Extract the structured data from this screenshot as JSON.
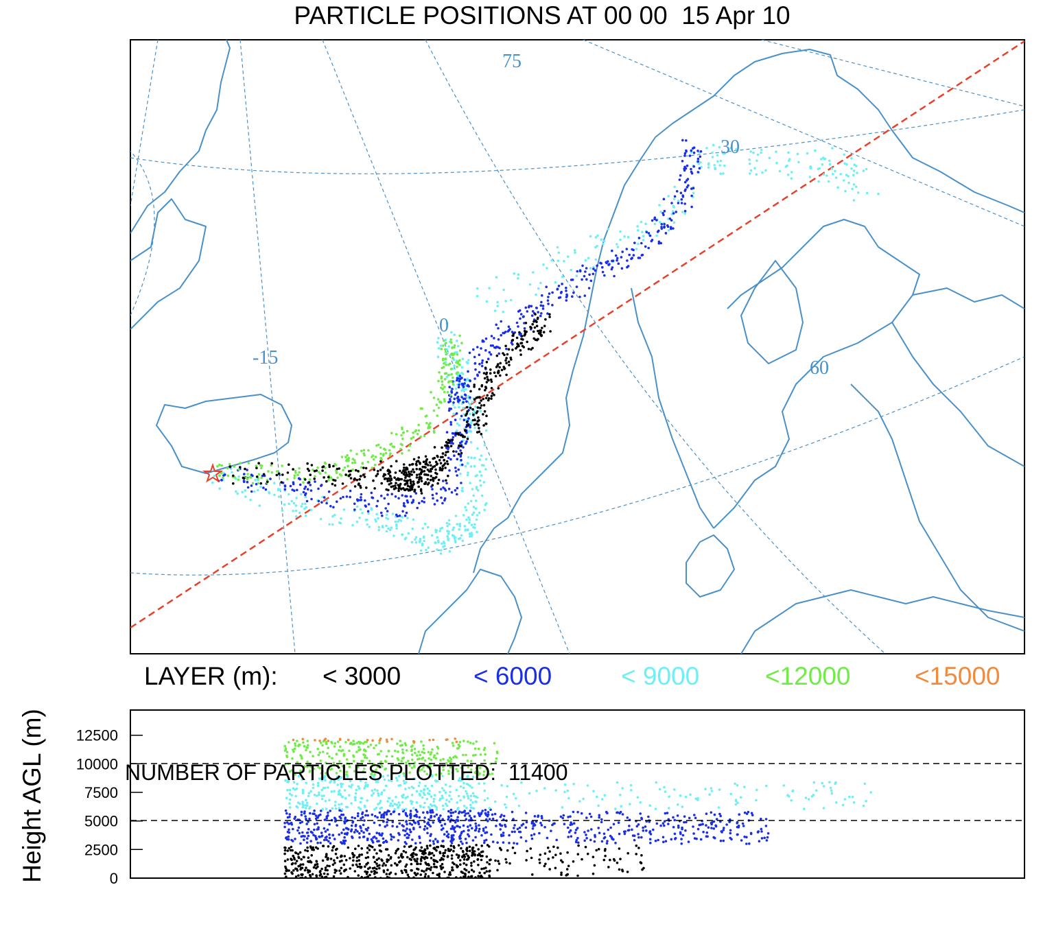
{
  "title": "PARTICLE POSITIONS AT 00 00  15 Apr 10",
  "map": {
    "lon_labels": [
      "-15",
      "0",
      "30"
    ],
    "lat_labels": [
      "75",
      "60"
    ],
    "source_marker": "red-star",
    "colors": {
      "coast": "#4a90c8",
      "grid": "#4a90c8",
      "transect": "#e8402a"
    }
  },
  "legend": {
    "label": "LAYER (m):",
    "items": [
      {
        "label": "< 3000",
        "color": "#000000"
      },
      {
        "label": "< 6000",
        "color": "#1a2ee8"
      },
      {
        "label": "< 9000",
        "color": "#6cf0f4"
      },
      {
        "label": "<12000",
        "color": "#6fec45"
      },
      {
        "label": "<15000",
        "color": "#f08a3c"
      }
    ]
  },
  "chart_data": {
    "type": "scatter",
    "ylabel": "Height AGL (m)",
    "yticks": [
      "12500",
      "10000",
      "7500",
      "5000",
      "2500",
      "0"
    ],
    "ylim": [
      0,
      15000
    ],
    "reference_lines": [
      5000,
      10000
    ],
    "layers": [
      {
        "name": "< 3000",
        "color": "#000000",
        "ymin": 0,
        "ymax": 3000
      },
      {
        "name": "< 6000",
        "color": "#1a2ee8",
        "ymin": 3000,
        "ymax": 6000
      },
      {
        "name": "< 9000",
        "color": "#6cf0f4",
        "ymin": 6000,
        "ymax": 9000
      },
      {
        "name": "<12000",
        "color": "#6fec45",
        "ymin": 9000,
        "ymax": 12000
      },
      {
        "name": "<15000",
        "color": "#f08a3c",
        "ymin": 12000,
        "ymax": 15000
      }
    ]
  },
  "footer": "NUMBER OF PARTICLES PLOTTED:  11400"
}
